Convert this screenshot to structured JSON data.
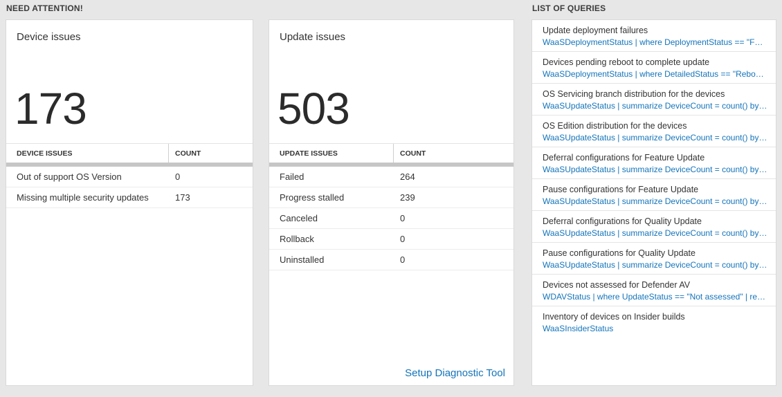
{
  "header": {
    "need_attention": "NEED ATTENTION!",
    "list_of_queries": "LIST OF QUERIES"
  },
  "colors": {
    "link_blue": "#1374ba",
    "tile_background": "#ffffff",
    "page_background": "#e7e7e7"
  },
  "device_issues": {
    "title": "Device issues",
    "count": "173",
    "table": {
      "headers": [
        "DEVICE ISSUES",
        "COUNT"
      ],
      "rows": [
        {
          "label": "Out of support OS Version",
          "value": "0"
        },
        {
          "label": "Missing multiple security updates",
          "value": "173"
        }
      ]
    }
  },
  "update_issues": {
    "title": "Update issues",
    "count": "503",
    "table": {
      "headers": [
        "UPDATE ISSUES",
        "COUNT"
      ],
      "rows": [
        {
          "label": "Failed",
          "value": "264"
        },
        {
          "label": "Progress stalled",
          "value": "239"
        },
        {
          "label": "Canceled",
          "value": "0"
        },
        {
          "label": "Rollback",
          "value": "0"
        },
        {
          "label": "Uninstalled",
          "value": "0"
        }
      ]
    },
    "footer_link": "Setup Diagnostic Tool"
  },
  "queries": {
    "items": [
      {
        "title": "Update deployment failures",
        "query": "WaaSDeploymentStatus | where DeploymentStatus == \"Failed\" |..."
      },
      {
        "title": "Devices pending reboot to complete update",
        "query": "WaaSDeploymentStatus | where DetailedStatus == \"Reboot pend..."
      },
      {
        "title": "OS Servicing branch distribution for the devices",
        "query": "WaaSUpdateStatus | summarize DeviceCount = count() by OSSer..."
      },
      {
        "title": "OS Edition distribution for the devices",
        "query": "WaaSUpdateStatus | summarize DeviceCount = count() by OSEdit..."
      },
      {
        "title": "Deferral configurations for Feature Update",
        "query": "WaaSUpdateStatus | summarize DeviceCount = count() by Featur..."
      },
      {
        "title": "Pause configurations for Feature Update",
        "query": "WaaSUpdateStatus | summarize DeviceCount = count() by Featur..."
      },
      {
        "title": "Deferral configurations for Quality Update",
        "query": "WaaSUpdateStatus | summarize DeviceCount = count() by Qualit..."
      },
      {
        "title": "Pause configurations for Quality Update",
        "query": "WaaSUpdateStatus | summarize DeviceCount = count() by Qualit..."
      },
      {
        "title": "Devices not assessed for Defender AV",
        "query": "WDAVStatus | where UpdateStatus == \"Not assessed\" | render ta..."
      },
      {
        "title": "Inventory of devices on Insider builds",
        "query": "WaaSInsiderStatus"
      }
    ]
  }
}
